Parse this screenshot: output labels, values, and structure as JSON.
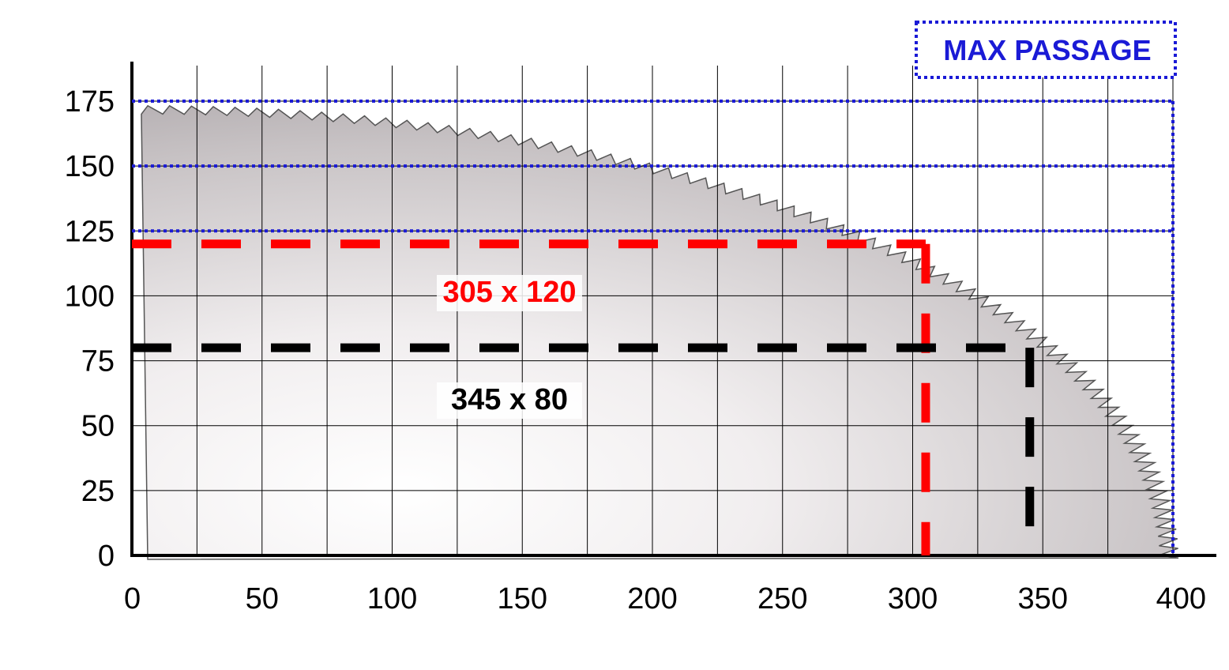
{
  "chart_data": {
    "type": "line",
    "title": "",
    "xlabel": "",
    "ylabel": "",
    "xlim": [
      0,
      400
    ],
    "ylim": [
      0,
      175
    ],
    "x_ticks": [
      0,
      50,
      100,
      150,
      200,
      250,
      300,
      350,
      400
    ],
    "y_ticks": [
      0,
      25,
      50,
      75,
      100,
      125,
      150,
      175
    ],
    "grid": true,
    "legend": {
      "label": "MAX PASSAGE",
      "placement": "top-right"
    },
    "max_passage_levels": [
      125,
      150,
      175
    ],
    "cut_capacities": [
      {
        "label": "305 x 120",
        "x": 305,
        "y": 120,
        "color": "#ff0000"
      },
      {
        "label": "345 x 80",
        "x": 345,
        "y": 80,
        "color": "#000000"
      }
    ],
    "colors": {
      "blue_dotted": "#1a1ad6",
      "red": "#ff0000",
      "black": "#000000",
      "grid": "#000000"
    },
    "background_picture": "saw-blade-quarter"
  }
}
